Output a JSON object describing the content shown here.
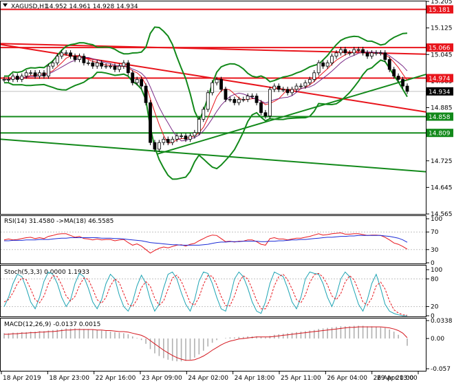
{
  "colors": {
    "background": "#ffffff",
    "frame": "#000000",
    "grid": "#c0c0c0",
    "candle_up": "#000000",
    "candle_down": "#000000",
    "resistance": "#e8141b",
    "support": "#12891a",
    "bollinger": "#12891a",
    "ma_red": "#e8141b",
    "ma_purple": "#7a2a86",
    "rsi_line": "#e8141b",
    "rsi_ma": "#1a2ad6",
    "stoch_main": "#1ba3b3",
    "stoch_signal": "#e8141b",
    "macd_hist": "#b0b0b0",
    "macd_signal": "#d4151c",
    "current_price_tag": "#000000"
  },
  "header": {
    "symbol": "XAGUSD,H1",
    "ohlc": "14.952 14.961 14.928 14.934"
  },
  "panels": {
    "rsi_title": "RSI(14) 31.4580 ->MA(18) 46.5585",
    "stoch_title": "Stoch(5,3,3) 0.0000 1.1933",
    "macd_title": "MACD(12,26,9) -0.0137 0.0015"
  },
  "chart_data": [
    {
      "type": "line",
      "name": "price",
      "ylim": [
        14.565,
        15.205
      ],
      "y_ticks": [
        "15.205",
        "15.125",
        "15.045",
        "14.965",
        "14.885",
        "14.805",
        "14.725",
        "14.645",
        "14.565"
      ],
      "time_labels": [
        "18 Apr 2019",
        "18 Apr 23:00",
        "22 Apr 16:00",
        "23 Apr 09:00",
        "24 Apr 02:00",
        "24 Apr 18:00",
        "25 Apr 11:00",
        "26 Apr 04:00",
        "26 Apr 20:00",
        "29 Apr 13:00"
      ],
      "close": [
        14.97,
        14.97,
        14.98,
        14.97,
        14.98,
        14.99,
        14.99,
        14.98,
        14.99,
        14.98,
        15.01,
        15.02,
        15.04,
        15.05,
        15.05,
        15.04,
        15.03,
        15.04,
        15.02,
        15.02,
        15.01,
        15.02,
        15.01,
        15.01,
        15.01,
        15.0,
        15.01,
        15.02,
        14.99,
        14.96,
        14.97,
        14.95,
        14.9,
        14.78,
        14.76,
        14.78,
        14.79,
        14.78,
        14.79,
        14.8,
        14.8,
        14.79,
        14.8,
        14.81,
        14.85,
        14.88,
        14.93,
        14.96,
        14.97,
        14.94,
        14.91,
        14.91,
        14.9,
        14.91,
        14.91,
        14.92,
        14.92,
        14.9,
        14.87,
        14.86,
        14.94,
        14.95,
        14.94,
        14.94,
        14.93,
        14.94,
        14.95,
        14.95,
        14.96,
        14.97,
        14.99,
        15.02,
        15.01,
        15.02,
        15.04,
        15.05,
        15.06,
        15.05,
        15.05,
        15.06,
        15.06,
        15.05,
        15.04,
        15.05,
        15.05,
        15.05,
        15.03,
        15.0,
        14.98,
        14.97,
        14.95,
        14.934
      ],
      "price_tags": [
        {
          "label": "15.181",
          "color": "#e8141b"
        },
        {
          "label": "15.066",
          "color": "#e8141b"
        },
        {
          "label": "14.974",
          "color": "#e8141b"
        },
        {
          "label": "14.934",
          "color": "#000000"
        },
        {
          "label": "14.858",
          "color": "#12891a"
        },
        {
          "label": "14.809",
          "color": "#12891a"
        }
      ]
    },
    {
      "type": "line",
      "name": "RSI",
      "ylim": [
        0,
        100
      ],
      "y_ticks": [
        "100",
        "70",
        "30",
        "0"
      ],
      "rsi": [
        52,
        54,
        52,
        53,
        55,
        57,
        58,
        55,
        57,
        55,
        60,
        62,
        65,
        66,
        66,
        62,
        58,
        60,
        55,
        54,
        52,
        54,
        52,
        53,
        53,
        50,
        52,
        53,
        46,
        40,
        43,
        38,
        30,
        22,
        28,
        33,
        36,
        34,
        37,
        40,
        41,
        38,
        42,
        44,
        50,
        55,
        60,
        63,
        62,
        55,
        48,
        49,
        47,
        49,
        49,
        52,
        52,
        48,
        42,
        40,
        55,
        57,
        54,
        54,
        52,
        54,
        56,
        56,
        58,
        60,
        63,
        66,
        63,
        64,
        66,
        67,
        68,
        65,
        65,
        66,
        66,
        64,
        62,
        63,
        63,
        62,
        58,
        52,
        45,
        42,
        37,
        31
      ],
      "ma": [
        50,
        50,
        51,
        51,
        51,
        52,
        52,
        52,
        53,
        53,
        53,
        54,
        55,
        56,
        56,
        57,
        57,
        57,
        57,
        57,
        57,
        57,
        56,
        56,
        56,
        55,
        55,
        54,
        53,
        52,
        51,
        50,
        48,
        46,
        45,
        44,
        43,
        42,
        41,
        41,
        40,
        40,
        40,
        40,
        40,
        41,
        42,
        44,
        46,
        47,
        47,
        48,
        48,
        48,
        49,
        49,
        49,
        49,
        48,
        48,
        49,
        49,
        50,
        50,
        51,
        52,
        52,
        53,
        53,
        54,
        55,
        56,
        57,
        58,
        58,
        59,
        60,
        60,
        61,
        61,
        62,
        62,
        62,
        62,
        62,
        62,
        61,
        60,
        58,
        56,
        52,
        46.6
      ]
    },
    {
      "type": "line",
      "name": "Stochastic",
      "ylim": [
        0,
        100
      ],
      "y_ticks": [
        "100",
        "80",
        "20",
        "0"
      ],
      "k": [
        20,
        40,
        70,
        90,
        85,
        60,
        30,
        15,
        40,
        75,
        95,
        90,
        70,
        40,
        20,
        35,
        70,
        92,
        85,
        60,
        30,
        15,
        35,
        70,
        90,
        80,
        45,
        20,
        10,
        30,
        65,
        88,
        70,
        35,
        10,
        25,
        60,
        90,
        95,
        80,
        50,
        25,
        10,
        35,
        75,
        95,
        92,
        70,
        40,
        15,
        10,
        40,
        80,
        95,
        85,
        60,
        30,
        10,
        5,
        30,
        70,
        95,
        90,
        85,
        60,
        30,
        15,
        40,
        80,
        95,
        92,
        90,
        70,
        40,
        20,
        45,
        80,
        95,
        85,
        55,
        25,
        10,
        35,
        70,
        90,
        60,
        25,
        10,
        5,
        2,
        0,
        0
      ],
      "d": [
        30,
        35,
        50,
        70,
        82,
        78,
        58,
        35,
        28,
        43,
        70,
        87,
        85,
        67,
        43,
        32,
        42,
        66,
        82,
        79,
        58,
        35,
        27,
        40,
        65,
        80,
        72,
        48,
        25,
        20,
        35,
        61,
        74,
        64,
        38,
        23,
        32,
        58,
        82,
        88,
        75,
        52,
        28,
        23,
        40,
        68,
        87,
        86,
        67,
        42,
        22,
        22,
        43,
        72,
        87,
        80,
        58,
        33,
        15,
        15,
        35,
        65,
        85,
        90,
        78,
        58,
        35,
        28,
        45,
        72,
        89,
        92,
        84,
        67,
        43,
        35,
        48,
        73,
        87,
        78,
        55,
        30,
        23,
        38,
        65,
        73,
        58,
        32,
        13,
        6,
        2,
        1.2
      ]
    },
    {
      "type": "bar",
      "name": "MACD",
      "ylim": [
        -0.057,
        0.0338
      ],
      "y_ticks": [
        "0.0338",
        "0.00",
        "-0.057"
      ],
      "hist": [
        0.01,
        0.01,
        0.011,
        0.011,
        0.012,
        0.012,
        0.013,
        0.013,
        0.014,
        0.014,
        0.015,
        0.016,
        0.017,
        0.018,
        0.019,
        0.019,
        0.019,
        0.019,
        0.018,
        0.018,
        0.017,
        0.016,
        0.015,
        0.014,
        0.013,
        0.012,
        0.011,
        0.01,
        0.008,
        0.004,
        0.001,
        -0.003,
        -0.01,
        -0.02,
        -0.028,
        -0.033,
        -0.037,
        -0.04,
        -0.042,
        -0.043,
        -0.043,
        -0.042,
        -0.04,
        -0.036,
        -0.03,
        -0.023,
        -0.015,
        -0.008,
        -0.003,
        0.0,
        0.001,
        0.002,
        0.002,
        0.003,
        0.003,
        0.004,
        0.004,
        0.004,
        0.003,
        0.002,
        0.005,
        0.007,
        0.008,
        0.009,
        0.01,
        0.011,
        0.012,
        0.013,
        0.014,
        0.015,
        0.016,
        0.018,
        0.019,
        0.02,
        0.021,
        0.022,
        0.023,
        0.023,
        0.023,
        0.024,
        0.024,
        0.024,
        0.023,
        0.023,
        0.022,
        0.021,
        0.02,
        0.017,
        0.013,
        0.007,
        0.0,
        -0.0137
      ],
      "signal": [
        0.008,
        0.008,
        0.009,
        0.009,
        0.01,
        0.01,
        0.011,
        0.011,
        0.012,
        0.012,
        0.013,
        0.013,
        0.014,
        0.015,
        0.016,
        0.016,
        0.017,
        0.017,
        0.017,
        0.017,
        0.017,
        0.016,
        0.016,
        0.015,
        0.015,
        0.014,
        0.013,
        0.013,
        0.012,
        0.01,
        0.008,
        0.006,
        0.002,
        -0.004,
        -0.01,
        -0.016,
        -0.022,
        -0.027,
        -0.032,
        -0.036,
        -0.039,
        -0.041,
        -0.041,
        -0.04,
        -0.037,
        -0.033,
        -0.028,
        -0.022,
        -0.017,
        -0.012,
        -0.008,
        -0.005,
        -0.003,
        -0.001,
        0.0,
        0.001,
        0.002,
        0.003,
        0.003,
        0.003,
        0.003,
        0.004,
        0.005,
        0.006,
        0.007,
        0.008,
        0.009,
        0.01,
        0.011,
        0.012,
        0.013,
        0.014,
        0.015,
        0.016,
        0.017,
        0.018,
        0.019,
        0.02,
        0.021,
        0.021,
        0.022,
        0.022,
        0.022,
        0.022,
        0.022,
        0.022,
        0.021,
        0.02,
        0.018,
        0.015,
        0.01,
        0.0015
      ]
    }
  ]
}
